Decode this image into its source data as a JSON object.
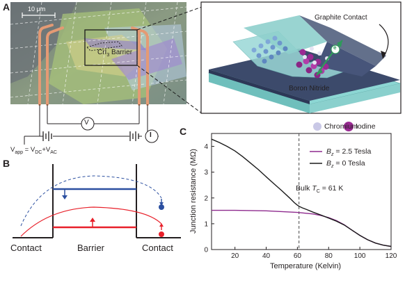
{
  "panels": {
    "a": "A",
    "b": "B",
    "c": "C"
  },
  "panel_a": {
    "scale_bar": "10 μm",
    "barrier_prefix": "CrI",
    "barrier_sub": "3",
    "barrier_suffix": " Barrier",
    "voltmeter": "V",
    "ammeter": "I",
    "vapp": "V",
    "vapp_sub1": "app",
    "vapp_mid1": " = V",
    "vapp_sub2": "DC",
    "vapp_mid2": "+V",
    "vapp_sub3": "AC"
  },
  "schematic": {
    "graphite_label": "Graphite Contact",
    "boron_label": "Boron Nitride",
    "electron_symbol": "e"
  },
  "legend_atoms": {
    "iodine": "Iodine",
    "chromium": "Chromium",
    "iodine_color": "#9b2a94",
    "chromium_color": "#c9c8e6"
  },
  "panel_b": {
    "contact_left": "Contact",
    "barrier": "Barrier",
    "contact_right": "Contact",
    "spin_up_color": "#e8202a",
    "spin_down_color": "#2b4fa0"
  },
  "chart_data": {
    "type": "line",
    "xlabel": "Temperature (Kelvin)",
    "ylabel": "Junction resistance (MΩ)",
    "xlim": [
      5,
      120
    ],
    "ylim": [
      0,
      4.5
    ],
    "xticks": [
      20,
      40,
      60,
      80,
      100,
      120
    ],
    "yticks": [
      0,
      1,
      2,
      3,
      4
    ],
    "series": [
      {
        "name": "B_z = 2.5 Tesla",
        "legend_var": "B",
        "legend_sub": "z",
        "legend_rest": " = 2.5 Tesla",
        "color": "#8e2a8e",
        "x": [
          5,
          20,
          40,
          60,
          70,
          75,
          80,
          85,
          90,
          95,
          100,
          105,
          110,
          115,
          120
        ],
        "y": [
          1.52,
          1.52,
          1.5,
          1.44,
          1.38,
          1.32,
          1.24,
          1.12,
          0.96,
          0.75,
          0.55,
          0.38,
          0.25,
          0.17,
          0.12
        ]
      },
      {
        "name": "B_z = 0 Tesla",
        "legend_var": "B",
        "legend_sub": "z",
        "legend_rest": " = 0 Tesla",
        "color": "#1a1a1a",
        "x": [
          5,
          10,
          15,
          20,
          25,
          30,
          35,
          40,
          45,
          50,
          55,
          58,
          60,
          61,
          63,
          66,
          70,
          75,
          80,
          85,
          90,
          95,
          100,
          105,
          110,
          115,
          120
        ],
        "y": [
          4.28,
          4.15,
          4.0,
          3.82,
          3.6,
          3.35,
          3.1,
          2.82,
          2.55,
          2.28,
          2.0,
          1.82,
          1.72,
          1.68,
          1.62,
          1.55,
          1.45,
          1.34,
          1.22,
          1.1,
          0.95,
          0.75,
          0.55,
          0.38,
          0.25,
          0.17,
          0.12
        ]
      }
    ],
    "annotation": {
      "text_prefix": "Bulk ",
      "t_var": "T",
      "t_sub": "C",
      "text_suffix": " = 61 K",
      "x": 61
    }
  }
}
